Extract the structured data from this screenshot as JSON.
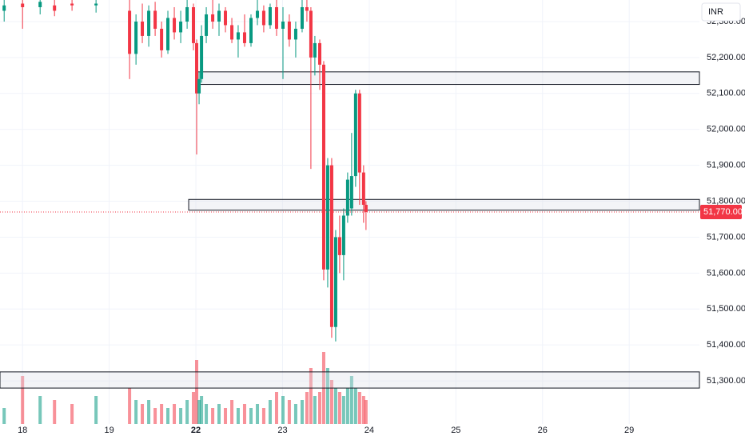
{
  "chart_data": {
    "type": "candlestick",
    "currency": "INR",
    "up_color": "#089981",
    "down_color": "#f23645",
    "grid": true,
    "xlim": [
      -0.26,
      7.81
    ],
    "xticks": [
      {
        "value": 0,
        "label": "18"
      },
      {
        "value": 1,
        "label": "19"
      },
      {
        "value": 2,
        "label": "22"
      },
      {
        "value": 3,
        "label": "23"
      },
      {
        "value": 4,
        "label": "24"
      },
      {
        "value": 5,
        "label": "25"
      },
      {
        "value": 6,
        "label": "26"
      },
      {
        "value": 7,
        "label": "29"
      }
    ],
    "ylim": [
      51180,
      52360
    ],
    "yticks": [
      {
        "value": 51300,
        "label": "51,300.00"
      },
      {
        "value": 51400,
        "label": "51,400.00"
      },
      {
        "value": 51500,
        "label": "51,500.00"
      },
      {
        "value": 51600,
        "label": "51,600.00"
      },
      {
        "value": 51700,
        "label": "51,700.00"
      },
      {
        "value": 51800,
        "label": "51,800.00"
      },
      {
        "value": 51900,
        "label": "51,900.00"
      },
      {
        "value": 52000,
        "label": "52,000.00"
      },
      {
        "value": 52100,
        "label": "52,100.00"
      },
      {
        "value": 52200,
        "label": "52,200.00"
      },
      {
        "value": 52300,
        "label": "52,300.00"
      }
    ],
    "vlim": [
      0,
      100
    ],
    "x": [
      -0.212,
      0,
      0.203,
      0.369,
      0.571,
      0.848,
      1.235,
      1.309,
      1.382,
      1.456,
      1.53,
      1.604,
      1.677,
      1.751,
      1.825,
      1.899,
      1.972,
      2.009,
      2.037,
      2.065,
      2.12,
      2.194,
      2.267,
      2.341,
      2.415,
      2.488,
      2.562,
      2.636,
      2.71,
      2.783,
      2.857,
      2.931,
      3.005,
      3.078,
      3.152,
      3.226,
      3.281,
      3.327,
      3.373,
      3.429,
      3.475,
      3.521,
      3.567,
      3.613,
      3.659,
      3.705,
      3.751,
      3.797,
      3.843,
      3.889,
      3.935,
      3.963
    ],
    "open": [
      52330,
      52350,
      52340,
      52345,
      52350,
      52345,
      52330,
      52210,
      52300,
      52260,
      52330,
      52280,
      52220,
      52310,
      52270,
      52300,
      52340,
      52240,
      52100,
      52140,
      52260,
      52320,
      52300,
      52330,
      52290,
      52250,
      52270,
      52240,
      52310,
      52330,
      52290,
      52340,
      52280,
      52300,
      52250,
      52280,
      52340,
      52330,
      52200,
      52240,
      52180,
      51610,
      51900,
      51450,
      51700,
      51650,
      51760,
      51780,
      51870,
      52100,
      51880,
      51790
    ],
    "high": [
      52360,
      52360,
      52360,
      52360,
      52360,
      52360,
      52360,
      52320,
      52350,
      52345,
      52355,
      52300,
      52330,
      52340,
      52330,
      52360,
      52350,
      52250,
      52160,
      52290,
      52340,
      52360,
      52350,
      52340,
      52310,
      52290,
      52320,
      52320,
      52360,
      52345,
      52350,
      52360,
      52340,
      52320,
      52300,
      52360,
      52360,
      52340,
      52260,
      52250,
      52190,
      51920,
      51920,
      51720,
      51760,
      51780,
      51880,
      51990,
      52110,
      52110,
      51900,
      51800
    ],
    "low": [
      52300,
      52280,
      52320,
      52315,
      52330,
      52325,
      52140,
      52180,
      52240,
      52230,
      52260,
      52200,
      52210,
      52250,
      52240,
      52280,
      52220,
      51930,
      52070,
      52130,
      52240,
      52280,
      52260,
      52270,
      52240,
      52200,
      52230,
      52230,
      52290,
      52270,
      52280,
      52260,
      52140,
      52230,
      52200,
      52270,
      52300,
      51890,
      52150,
      52110,
      51580,
      51560,
      51420,
      51410,
      51600,
      51580,
      51740,
      51760,
      51840,
      51790,
      51740,
      51720
    ],
    "close": [
      52345,
      52340,
      52355,
      52330,
      52345,
      52350,
      52210,
      52300,
      52260,
      52330,
      52280,
      52220,
      52310,
      52270,
      52300,
      52340,
      52240,
      52100,
      52140,
      52260,
      52320,
      52300,
      52330,
      52290,
      52250,
      52270,
      52240,
      52310,
      52330,
      52290,
      52340,
      52280,
      52300,
      52250,
      52280,
      52340,
      52330,
      52200,
      52240,
      52180,
      51610,
      51900,
      51450,
      51700,
      51650,
      51760,
      51860,
      51870,
      52100,
      51880,
      51790,
      51770
    ],
    "volume": [
      20,
      60,
      35,
      30,
      25,
      35,
      45,
      30,
      25,
      30,
      20,
      25,
      20,
      25,
      20,
      30,
      40,
      80,
      30,
      35,
      25,
      20,
      25,
      20,
      30,
      20,
      25,
      20,
      25,
      20,
      30,
      40,
      35,
      30,
      25,
      30,
      40,
      70,
      35,
      40,
      90,
      70,
      55,
      45,
      40,
      35,
      45,
      60,
      45,
      40,
      35,
      30
    ],
    "zones": [
      {
        "from": 2.0,
        "top": 52160,
        "bottom": 52125
      },
      {
        "from": 1.917,
        "top": 51805,
        "bottom": 51775
      },
      {
        "from": -0.26,
        "top": 51325,
        "bottom": 51280
      }
    ],
    "last_price": {
      "value": 51770,
      "label": "51,770.00"
    }
  }
}
